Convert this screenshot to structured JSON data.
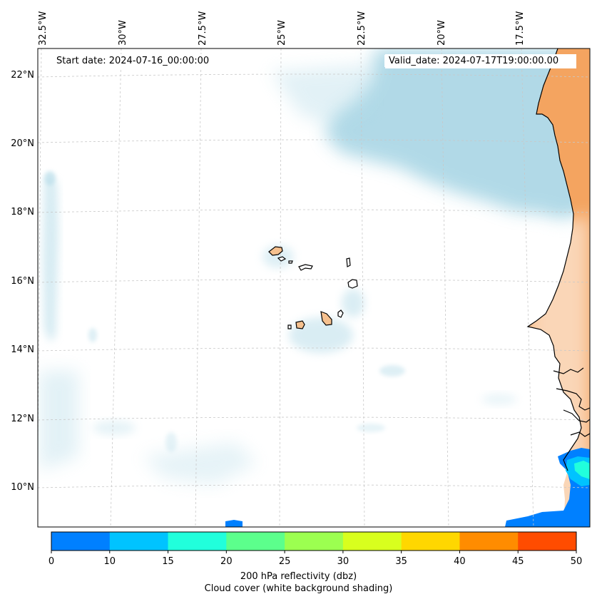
{
  "map": {
    "start_date": "Start date: 2024-07-16_00:00:00",
    "valid_date": "Valid_date: 2024-07-17T19:00:00.00",
    "longitude_labels": [
      "32.5°W",
      "30°W",
      "27.5°W",
      "25°W",
      "22.5°W",
      "20°W",
      "17.5°W"
    ],
    "latitude_labels": [
      "22°N",
      "20°N",
      "18°N",
      "16°N",
      "14°N",
      "12°N",
      "10°N"
    ],
    "extent": {
      "lon_min": -33.0,
      "lon_max": -15.6,
      "lat_min": 9.0,
      "lat_max": 22.8
    },
    "places": [
      "Cape Verde Islands",
      "West African coast"
    ]
  },
  "colorbar": {
    "ticks": [
      "0",
      "10",
      "15",
      "20",
      "25",
      "30",
      "35",
      "40",
      "45",
      "50"
    ],
    "colors": [
      "#0080ff",
      "#00c3ff",
      "#21ffdc",
      "#5cff8c",
      "#9cff50",
      "#d8ff1e",
      "#ffd700",
      "#ff8c00",
      "#ff4c00"
    ],
    "label_line1": "200 hPa reflectivity (dbz)",
    "label_line2": "Cloud cover (white background shading)"
  },
  "colors": {
    "land": "#f4a460",
    "island_land": "#f5c08e",
    "cloud_cover": "#add8e6",
    "coastline": "#000000",
    "gridline": "#c8c8c8"
  }
}
